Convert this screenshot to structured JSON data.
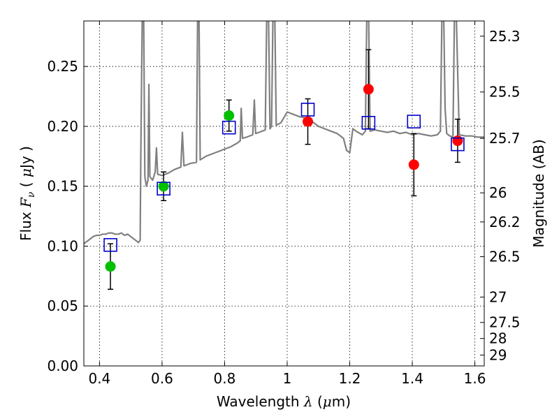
{
  "chart_data": {
    "type": "scatter",
    "xlabel": {
      "prefix": "Wavelength",
      "symbol": "λ",
      "open": " (",
      "unit_prefix": "μ",
      "unit": "m)"
    },
    "ylabel": {
      "prefix": "Flux",
      "symbol": "F",
      "subscript": "ν",
      "open": " ( ",
      "unit_prefix": "μ",
      "unit": "Jy )"
    },
    "y2label": "Magnitude (AB)",
    "xlim": [
      0.35,
      1.63
    ],
    "ylim": [
      0.0,
      0.288
    ],
    "grid": true,
    "xticks": [
      0.4,
      0.6,
      0.8,
      1.0,
      1.2,
      1.4,
      1.6
    ],
    "xtick_labels": [
      "0.4",
      "0.6",
      "0.8",
      "1",
      "1.2",
      "1.4",
      "1.6"
    ],
    "yticks": [
      0.0,
      0.05,
      0.1,
      0.15,
      0.2,
      0.25
    ],
    "ytick_labels": [
      "0.00",
      "0.05",
      "0.10",
      "0.15",
      "0.20",
      "0.25"
    ],
    "y2ticks": [
      {
        "flux": 0.2753,
        "label": "25.3"
      },
      {
        "flux": 0.2287,
        "label": "25.5"
      },
      {
        "flux": 0.19,
        "label": "25.7"
      },
      {
        "flux": 0.1445,
        "label": "26"
      },
      {
        "flux": 0.1202,
        "label": "26.2"
      },
      {
        "flux": 0.0912,
        "label": "26.5"
      },
      {
        "flux": 0.0575,
        "label": "27"
      },
      {
        "flux": 0.0363,
        "label": "27.5"
      },
      {
        "flux": 0.0229,
        "label": "28"
      },
      {
        "flux": 0.0091,
        "label": "29"
      }
    ],
    "model_spectrum": {
      "color": "#808080",
      "points": [
        [
          0.35,
          0.102
        ],
        [
          0.36,
          0.104
        ],
        [
          0.37,
          0.106
        ],
        [
          0.38,
          0.108
        ],
        [
          0.39,
          0.109
        ],
        [
          0.4,
          0.109
        ],
        [
          0.41,
          0.11
        ],
        [
          0.42,
          0.11
        ],
        [
          0.43,
          0.111
        ],
        [
          0.44,
          0.111
        ],
        [
          0.45,
          0.11
        ],
        [
          0.46,
          0.11
        ],
        [
          0.47,
          0.111
        ],
        [
          0.48,
          0.109
        ],
        [
          0.49,
          0.11
        ],
        [
          0.5,
          0.108
        ],
        [
          0.51,
          0.106
        ],
        [
          0.52,
          0.104
        ],
        [
          0.525,
          0.103
        ],
        [
          0.53,
          0.105
        ],
        [
          0.532,
          0.175
        ],
        [
          0.537,
          0.3
        ],
        [
          0.541,
          0.3
        ],
        [
          0.545,
          0.158
        ],
        [
          0.55,
          0.15
        ],
        [
          0.555,
          0.155
        ],
        [
          0.558,
          0.235
        ],
        [
          0.561,
          0.158
        ],
        [
          0.57,
          0.155
        ],
        [
          0.578,
          0.162
        ],
        [
          0.582,
          0.182
        ],
        [
          0.586,
          0.16
        ],
        [
          0.6,
          0.159
        ],
        [
          0.62,
          0.161
        ],
        [
          0.64,
          0.164
        ],
        [
          0.66,
          0.166
        ],
        [
          0.665,
          0.195
        ],
        [
          0.67,
          0.167
        ],
        [
          0.69,
          0.169
        ],
        [
          0.71,
          0.17
        ],
        [
          0.714,
          0.3
        ],
        [
          0.718,
          0.3
        ],
        [
          0.722,
          0.172
        ],
        [
          0.74,
          0.175
        ],
        [
          0.76,
          0.177
        ],
        [
          0.78,
          0.179
        ],
        [
          0.8,
          0.181
        ],
        [
          0.82,
          0.183
        ],
        [
          0.84,
          0.186
        ],
        [
          0.85,
          0.188
        ],
        [
          0.853,
          0.215
        ],
        [
          0.857,
          0.19
        ],
        [
          0.87,
          0.191
        ],
        [
          0.89,
          0.193
        ],
        [
          0.895,
          0.222
        ],
        [
          0.899,
          0.194
        ],
        [
          0.91,
          0.195
        ],
        [
          0.93,
          0.197
        ],
        [
          0.935,
          0.3
        ],
        [
          0.94,
          0.3
        ],
        [
          0.945,
          0.198
        ],
        [
          0.95,
          0.2
        ],
        [
          0.955,
          0.3
        ],
        [
          0.96,
          0.3
        ],
        [
          0.965,
          0.201
        ],
        [
          0.98,
          0.203
        ],
        [
          1.0,
          0.212
        ],
        [
          1.02,
          0.21
        ],
        [
          1.04,
          0.208
        ],
        [
          1.06,
          0.207
        ],
        [
          1.08,
          0.204
        ],
        [
          1.1,
          0.2
        ],
        [
          1.12,
          0.198
        ],
        [
          1.14,
          0.196
        ],
        [
          1.16,
          0.194
        ],
        [
          1.18,
          0.19
        ],
        [
          1.19,
          0.18
        ],
        [
          1.2,
          0.178
        ],
        [
          1.21,
          0.198
        ],
        [
          1.22,
          0.196
        ],
        [
          1.24,
          0.193
        ],
        [
          1.25,
          0.196
        ],
        [
          1.255,
          0.3
        ],
        [
          1.26,
          0.3
        ],
        [
          1.265,
          0.196
        ],
        [
          1.28,
          0.197
        ],
        [
          1.3,
          0.196
        ],
        [
          1.32,
          0.195
        ],
        [
          1.34,
          0.196
        ],
        [
          1.36,
          0.194
        ],
        [
          1.38,
          0.195
        ],
        [
          1.4,
          0.193
        ],
        [
          1.42,
          0.194
        ],
        [
          1.44,
          0.193
        ],
        [
          1.46,
          0.192
        ],
        [
          1.48,
          0.193
        ],
        [
          1.49,
          0.196
        ],
        [
          1.495,
          0.3
        ],
        [
          1.5,
          0.3
        ],
        [
          1.505,
          0.215
        ],
        [
          1.51,
          0.194
        ],
        [
          1.52,
          0.192
        ],
        [
          1.53,
          0.191
        ],
        [
          1.535,
          0.3
        ],
        [
          1.54,
          0.3
        ],
        [
          1.548,
          0.215
        ],
        [
          1.55,
          0.193
        ],
        [
          1.57,
          0.192
        ],
        [
          1.59,
          0.192
        ],
        [
          1.61,
          0.191
        ],
        [
          1.63,
          0.191
        ]
      ]
    },
    "series": [
      {
        "marker": "circle",
        "color": "#00c000",
        "points": [
          {
            "x": 0.435,
            "y": 0.083,
            "yerr": 0.019
          },
          {
            "x": 0.605,
            "y": 0.15,
            "yerr": 0.012
          },
          {
            "x": 0.814,
            "y": 0.209,
            "yerr": 0.013
          }
        ]
      },
      {
        "marker": "circle",
        "color": "#ff0000",
        "points": [
          {
            "x": 1.066,
            "y": 0.204,
            "yerr": 0.019
          },
          {
            "x": 1.26,
            "y": 0.231,
            "yerr": 0.033
          },
          {
            "x": 1.405,
            "y": 0.168,
            "yerr": 0.026
          },
          {
            "x": 1.545,
            "y": 0.188,
            "yerr": 0.018
          }
        ]
      },
      {
        "marker": "square-open",
        "color": "#0000cc",
        "points": [
          {
            "x": 0.435,
            "y": 0.101
          },
          {
            "x": 0.605,
            "y": 0.148
          },
          {
            "x": 0.814,
            "y": 0.199
          },
          {
            "x": 1.066,
            "y": 0.214
          },
          {
            "x": 1.26,
            "y": 0.203
          },
          {
            "x": 1.405,
            "y": 0.204
          },
          {
            "x": 1.545,
            "y": 0.185
          }
        ]
      }
    ]
  }
}
